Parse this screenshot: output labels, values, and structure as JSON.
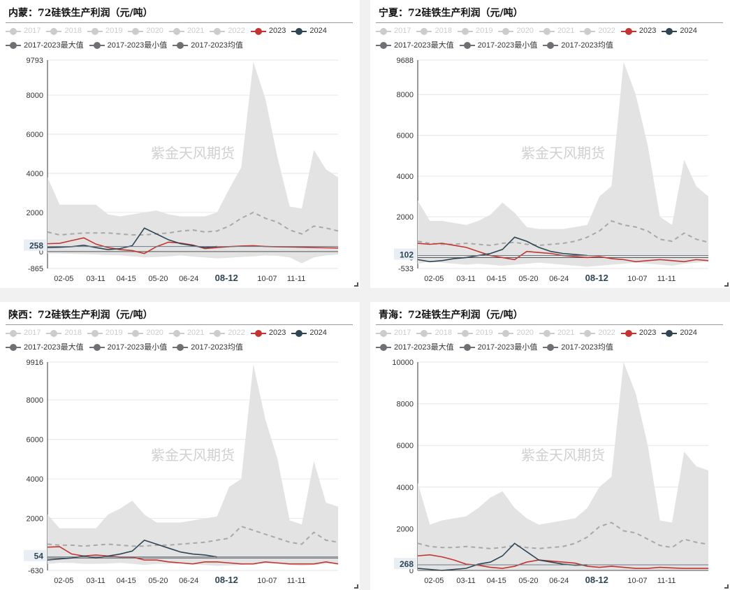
{
  "colors": {
    "max_min_band": "#e3e3e3",
    "avg_line": "#a8a8a8",
    "series_2023": "#c23531",
    "series_2024": "#2f4554",
    "disabled": "#cccccc",
    "grid": "#e6e6e6",
    "axis": "#333333",
    "label_bg": "#e8eef3"
  },
  "legend": {
    "row1": [
      {
        "label": "2017",
        "enabled": false,
        "color": "#cccccc"
      },
      {
        "label": "2018",
        "enabled": false,
        "color": "#cccccc"
      },
      {
        "label": "2019",
        "enabled": false,
        "color": "#cccccc"
      },
      {
        "label": "2020",
        "enabled": false,
        "color": "#cccccc"
      },
      {
        "label": "2021",
        "enabled": false,
        "color": "#cccccc"
      },
      {
        "label": "2022",
        "enabled": false,
        "color": "#cccccc"
      },
      {
        "label": "2023",
        "enabled": true,
        "color": "#c23531"
      },
      {
        "label": "2024",
        "enabled": true,
        "color": "#2f4554"
      }
    ],
    "row2": [
      {
        "label": "2017-2023最大值",
        "enabled": true,
        "color": "#6e7074"
      },
      {
        "label": "2017-2023最小值",
        "enabled": true,
        "color": "#6e7074"
      },
      {
        "label": "2017-2023均值",
        "enabled": true,
        "color": "#6e7074"
      }
    ]
  },
  "watermark": "紫金天风期货",
  "x_tick_labels": [
    "02-05",
    "03-11",
    "04-15",
    "05-20",
    "06-24",
    "08-12",
    "10-07",
    "11-11"
  ],
  "chart_data": [
    {
      "type": "line",
      "title": "内蒙：72硅铁生产利润（元/吨）",
      "ylim": [
        -865,
        9793
      ],
      "yticks": [
        9793,
        8000,
        6000,
        4000,
        2000,
        0,
        -865
      ],
      "highlight_value": 258,
      "highlight_x": "08-12",
      "x_dates": [
        "01-01",
        "01-15",
        "02-01",
        "02-15",
        "03-01",
        "03-15",
        "04-01",
        "04-15",
        "05-01",
        "05-15",
        "06-01",
        "06-15",
        "07-01",
        "07-15",
        "08-01",
        "08-15",
        "09-01",
        "09-15",
        "10-01",
        "10-15",
        "11-01",
        "11-15",
        "12-01",
        "12-15",
        "12-31"
      ],
      "series": [
        {
          "name": "2017-2023最大值",
          "values": [
            3800,
            2400,
            2400,
            2400,
            2400,
            1900,
            1800,
            1900,
            2000,
            2100,
            1900,
            1800,
            1800,
            1800,
            2000,
            3200,
            4300,
            9700,
            7800,
            4800,
            2300,
            2200,
            5200,
            4200,
            3800
          ]
        },
        {
          "name": "2017-2023最小值",
          "values": [
            -100,
            -100,
            -120,
            -130,
            -150,
            -180,
            -200,
            -250,
            -300,
            -280,
            -250,
            -200,
            -260,
            -300,
            -350,
            -320,
            -280,
            -250,
            -200,
            -220,
            -300,
            -600,
            -300,
            -200,
            -150
          ]
        },
        {
          "name": "2017-2023均值",
          "values": [
            1000,
            850,
            900,
            950,
            950,
            950,
            900,
            850,
            850,
            900,
            950,
            1050,
            1100,
            1000,
            1050,
            1300,
            1700,
            2000,
            1700,
            1500,
            1100,
            900,
            1300,
            1200,
            1050
          ]
        },
        {
          "name": "2023",
          "values": [
            400,
            420,
            560,
            700,
            380,
            200,
            100,
            50,
            -100,
            250,
            480,
            430,
            330,
            150,
            200,
            250,
            280,
            300,
            260,
            240,
            230,
            220,
            200,
            190,
            180
          ]
        },
        {
          "name": "2024",
          "values": [
            200,
            220,
            250,
            320,
            200,
            100,
            150,
            300,
            1200,
            900,
            600,
            400,
            300,
            200,
            258
          ]
        }
      ]
    },
    {
      "type": "line",
      "title": "宁夏：72硅铁生产利润（元/吨）",
      "ylim": [
        -533,
        9688
      ],
      "yticks": [
        9688,
        8000,
        6000,
        4000,
        2000,
        0,
        -533
      ],
      "highlight_value": 102,
      "highlight_x": "08-12",
      "x_dates": [
        "01-01",
        "01-15",
        "02-01",
        "02-15",
        "03-01",
        "03-15",
        "04-01",
        "04-15",
        "05-01",
        "05-15",
        "06-01",
        "06-15",
        "07-01",
        "07-15",
        "08-01",
        "08-15",
        "09-01",
        "09-15",
        "10-01",
        "10-15",
        "11-01",
        "11-15",
        "12-01",
        "12-15",
        "12-31"
      ],
      "series": [
        {
          "name": "2017-2023最大值",
          "values": [
            2800,
            1800,
            1800,
            1700,
            1600,
            1800,
            2100,
            2700,
            2200,
            1500,
            1400,
            1400,
            1400,
            1500,
            1600,
            3000,
            3500,
            9600,
            8000,
            5500,
            2000,
            1600,
            4800,
            3500,
            3000
          ]
        },
        {
          "name": "2017-2023最小值",
          "values": [
            -300,
            -200,
            -250,
            -300,
            -350,
            -300,
            -350,
            -400,
            -350,
            -300,
            -250,
            -300,
            -350,
            -400,
            -450,
            -400,
            -350,
            -300,
            -250,
            -300,
            -350,
            -400,
            -300,
            -250,
            -200
          ]
        },
        {
          "name": "2017-2023均值",
          "values": [
            800,
            700,
            650,
            650,
            700,
            650,
            600,
            700,
            750,
            650,
            600,
            650,
            700,
            800,
            1000,
            1300,
            1800,
            1600,
            1500,
            1300,
            900,
            800,
            1200,
            900,
            750
          ]
        },
        {
          "name": "2023",
          "values": [
            700,
            650,
            700,
            600,
            500,
            300,
            100,
            0,
            -100,
            300,
            250,
            200,
            100,
            50,
            0,
            50,
            -50,
            -100,
            -200,
            -150,
            -100,
            -150,
            -200,
            -100,
            -150
          ]
        },
        {
          "name": "2024",
          "values": [
            -100,
            -200,
            -150,
            -50,
            0,
            100,
            200,
            400,
            1000,
            800,
            500,
            300,
            200,
            150,
            102
          ]
        }
      ]
    },
    {
      "type": "line",
      "title": "陕西：72硅铁生产利润（元/吨）",
      "ylim": [
        -630,
        9916
      ],
      "yticks": [
        9916,
        8000,
        6000,
        4000,
        2000,
        0,
        -630
      ],
      "highlight_value": 54,
      "highlight_x": "08-12",
      "x_dates": [
        "01-01",
        "01-15",
        "02-01",
        "02-15",
        "03-01",
        "03-15",
        "04-01",
        "04-15",
        "05-01",
        "05-15",
        "06-01",
        "06-15",
        "07-01",
        "07-15",
        "08-01",
        "08-15",
        "09-01",
        "09-15",
        "10-01",
        "10-15",
        "11-01",
        "11-15",
        "12-01",
        "12-15",
        "12-31"
      ],
      "series": [
        {
          "name": "2017-2023最大值",
          "values": [
            2200,
            1500,
            1500,
            1500,
            1500,
            2200,
            2500,
            2900,
            2200,
            1800,
            1800,
            1800,
            1900,
            2000,
            2100,
            3600,
            4000,
            9800,
            7000,
            5000,
            1900,
            1700,
            4900,
            2800,
            2600
          ]
        },
        {
          "name": "2017-2023最小值",
          "values": [
            -300,
            -250,
            -250,
            -300,
            -300,
            -280,
            -250,
            -300,
            -350,
            -300,
            -300,
            -280,
            -320,
            -350,
            -400,
            -380,
            -350,
            -300,
            -280,
            -300,
            -350,
            -400,
            -350,
            -300,
            -280
          ]
        },
        {
          "name": "2017-2023均值",
          "values": [
            700,
            650,
            650,
            600,
            650,
            700,
            650,
            600,
            600,
            650,
            650,
            700,
            750,
            800,
            900,
            1000,
            1600,
            1400,
            1200,
            1000,
            800,
            700,
            1300,
            900,
            800
          ]
        },
        {
          "name": "2023",
          "values": [
            550,
            570,
            200,
            100,
            150,
            100,
            50,
            50,
            -100,
            -100,
            -200,
            -250,
            -300,
            -200,
            -200,
            -250,
            -300,
            -300,
            -200,
            -250,
            -300,
            -300,
            -300,
            -200,
            -300
          ]
        },
        {
          "name": "2024",
          "values": [
            -100,
            -50,
            0,
            100,
            0,
            100,
            200,
            350,
            900,
            700,
            500,
            300,
            200,
            150,
            54
          ]
        }
      ]
    },
    {
      "type": "line",
      "title": "青海：72硅铁生产利润（元/吨）",
      "ylim": [
        0,
        10000
      ],
      "yticks": [
        10000,
        8000,
        6000,
        4000,
        2000,
        0
      ],
      "highlight_value": 268,
      "highlight_x": "08-12",
      "x_dates": [
        "01-01",
        "01-15",
        "02-01",
        "02-15",
        "03-01",
        "03-15",
        "04-01",
        "04-15",
        "05-01",
        "05-15",
        "06-01",
        "06-15",
        "07-01",
        "07-15",
        "08-01",
        "08-15",
        "09-01",
        "09-15",
        "10-01",
        "10-15",
        "11-01",
        "11-15",
        "12-01",
        "12-15",
        "12-31"
      ],
      "series": [
        {
          "name": "2017-2023最大值",
          "values": [
            4200,
            2200,
            2400,
            2500,
            2600,
            3000,
            3500,
            3800,
            3000,
            2500,
            2200,
            2300,
            2400,
            2500,
            3000,
            4000,
            4500,
            10000,
            8500,
            6000,
            2400,
            2300,
            5700,
            5000,
            4800
          ]
        },
        {
          "name": "2017-2023最小值",
          "values": [
            0,
            0,
            0,
            0,
            0,
            0,
            0,
            0,
            0,
            0,
            0,
            0,
            0,
            0,
            0,
            0,
            0,
            0,
            0,
            0,
            0,
            0,
            0,
            0,
            0
          ]
        },
        {
          "name": "2017-2023均值",
          "values": [
            1300,
            1150,
            1100,
            1100,
            1150,
            1100,
            1050,
            1100,
            1200,
            1100,
            1050,
            1100,
            1150,
            1300,
            1600,
            2100,
            2300,
            1900,
            1800,
            1500,
            1200,
            1100,
            1500,
            1350,
            1250
          ]
        },
        {
          "name": "2023",
          "values": [
            700,
            750,
            650,
            500,
            300,
            250,
            150,
            100,
            200,
            400,
            500,
            450,
            400,
            350,
            200,
            150,
            200,
            150,
            100,
            100,
            150,
            120,
            100,
            100,
            100
          ]
        },
        {
          "name": "2024",
          "values": [
            100,
            50,
            0,
            50,
            100,
            300,
            400,
            700,
            1300,
            900,
            500,
            400,
            300,
            250,
            268
          ]
        }
      ]
    }
  ]
}
